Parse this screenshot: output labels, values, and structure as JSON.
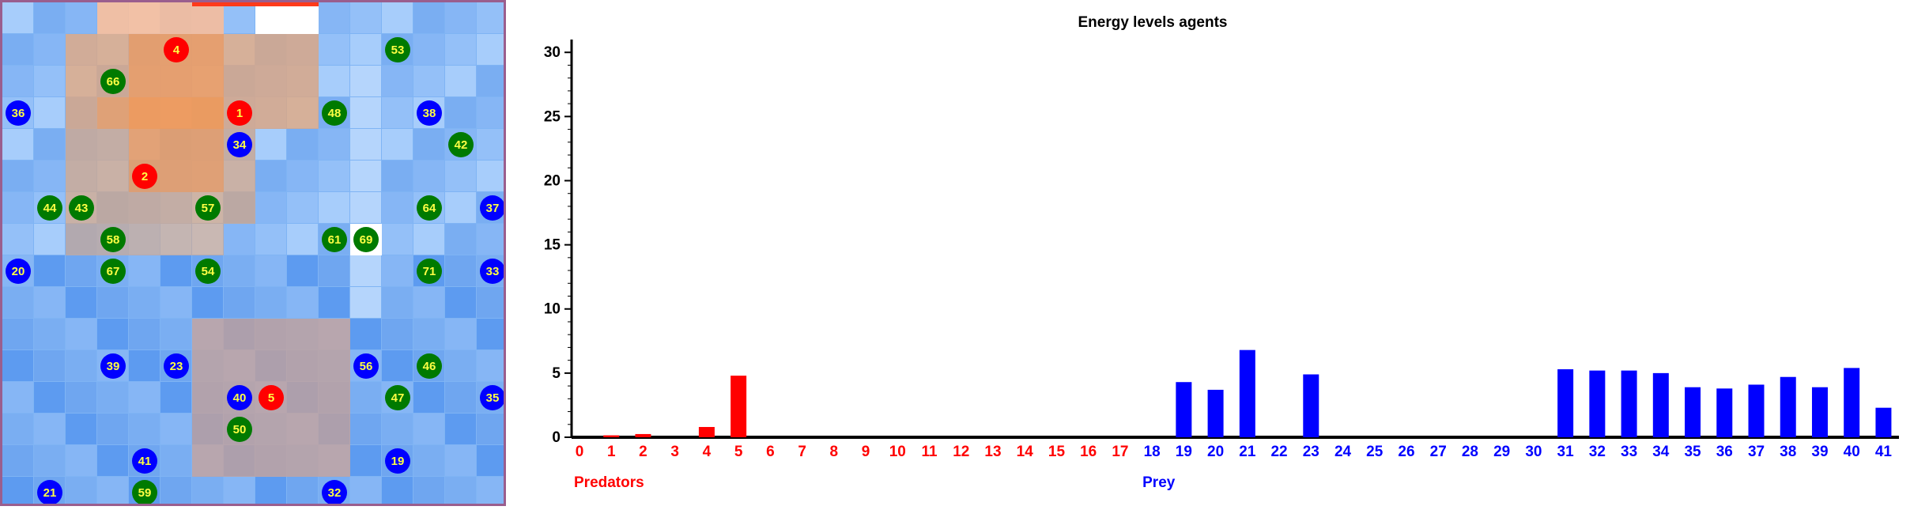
{
  "chart_data": {
    "type": "bar",
    "title": "Energy levels agents",
    "ylim": [
      0,
      31
    ],
    "yticks": [
      "0",
      "5",
      "10",
      "15",
      "20",
      "25",
      "30"
    ],
    "groups": [
      {
        "name": "Predators",
        "color": "#ff0000",
        "ids": [
          0,
          1,
          2,
          3,
          4,
          5,
          6,
          7,
          8,
          9,
          10,
          11,
          12,
          13,
          14,
          15,
          16,
          17
        ]
      },
      {
        "name": "Prey",
        "color": "#0000ff",
        "ids": [
          18,
          19,
          20,
          21,
          22,
          23,
          24,
          25,
          26,
          27,
          28,
          29,
          30,
          31,
          32,
          33,
          34,
          35,
          36,
          37,
          38,
          39,
          40,
          41
        ]
      }
    ],
    "categories": [
      "0",
      "1",
      "2",
      "3",
      "4",
      "5",
      "6",
      "7",
      "8",
      "9",
      "10",
      "11",
      "12",
      "13",
      "14",
      "15",
      "16",
      "17",
      "18",
      "19",
      "20",
      "21",
      "22",
      "23",
      "24",
      "25",
      "26",
      "27",
      "28",
      "29",
      "30",
      "31",
      "32",
      "33",
      "34",
      "35",
      "36",
      "37",
      "38",
      "39",
      "40",
      "41"
    ],
    "values": [
      0,
      0.15,
      0.25,
      0,
      0.8,
      4.8,
      0,
      0,
      0,
      0,
      0,
      0,
      0,
      0,
      0,
      0,
      0,
      0,
      0,
      4.3,
      3.7,
      6.8,
      0,
      4.9,
      0,
      0,
      0,
      0,
      0,
      0,
      0,
      5.3,
      5.2,
      5.2,
      5.0,
      3.9,
      3.8,
      4.1,
      4.7,
      3.9,
      5.4,
      2.3
    ]
  },
  "grid": {
    "agents": [
      {
        "label": "4",
        "kind": "predator",
        "col": 5,
        "row": 1
      },
      {
        "label": "1",
        "kind": "predator",
        "col": 7,
        "row": 3
      },
      {
        "label": "2",
        "kind": "predator",
        "col": 4,
        "row": 5
      },
      {
        "label": "5",
        "kind": "predator",
        "col": 8,
        "row": 12
      },
      {
        "label": "36",
        "kind": "prey",
        "col": 0,
        "row": 3
      },
      {
        "label": "34",
        "kind": "prey",
        "col": 7,
        "row": 4
      },
      {
        "label": "38",
        "kind": "prey",
        "col": 13,
        "row": 3
      },
      {
        "label": "37",
        "kind": "prey",
        "col": 15,
        "row": 6
      },
      {
        "label": "20",
        "kind": "prey",
        "col": 0,
        "row": 8
      },
      {
        "label": "33",
        "kind": "prey",
        "col": 15,
        "row": 8
      },
      {
        "label": "39",
        "kind": "prey",
        "col": 3,
        "row": 11
      },
      {
        "label": "23",
        "kind": "prey",
        "col": 5,
        "row": 11
      },
      {
        "label": "56",
        "kind": "prey",
        "col": 11,
        "row": 11
      },
      {
        "label": "40",
        "kind": "prey",
        "col": 7,
        "row": 12
      },
      {
        "label": "35",
        "kind": "prey",
        "col": 15,
        "row": 12
      },
      {
        "label": "41",
        "kind": "prey",
        "col": 4,
        "row": 14
      },
      {
        "label": "19",
        "kind": "prey",
        "col": 12,
        "row": 14
      },
      {
        "label": "21",
        "kind": "prey",
        "col": 1,
        "row": 15
      },
      {
        "label": "32",
        "kind": "prey",
        "col": 10,
        "row": 15
      },
      {
        "label": "53",
        "kind": "plant",
        "col": 12,
        "row": 1
      },
      {
        "label": "66",
        "kind": "plant",
        "col": 3,
        "row": 2
      },
      {
        "label": "48",
        "kind": "plant",
        "col": 10,
        "row": 3
      },
      {
        "label": "42",
        "kind": "plant",
        "col": 14,
        "row": 4
      },
      {
        "label": "44",
        "kind": "plant",
        "col": 1,
        "row": 6
      },
      {
        "label": "43",
        "kind": "plant",
        "col": 2,
        "row": 6
      },
      {
        "label": "57",
        "kind": "plant",
        "col": 6,
        "row": 6
      },
      {
        "label": "64",
        "kind": "plant",
        "col": 13,
        "row": 6
      },
      {
        "label": "58",
        "kind": "plant",
        "col": 3,
        "row": 7
      },
      {
        "label": "61",
        "kind": "plant",
        "col": 10,
        "row": 7
      },
      {
        "label": "69",
        "kind": "plant",
        "col": 11,
        "row": 7
      },
      {
        "label": "67",
        "kind": "plant",
        "col": 3,
        "row": 8
      },
      {
        "label": "54",
        "kind": "plant",
        "col": 6,
        "row": 8
      },
      {
        "label": "71",
        "kind": "plant",
        "col": 13,
        "row": 8
      },
      {
        "label": "46",
        "kind": "plant",
        "col": 13,
        "row": 11
      },
      {
        "label": "47",
        "kind": "plant",
        "col": 12,
        "row": 12
      },
      {
        "label": "50",
        "kind": "plant",
        "col": 7,
        "row": 13
      },
      {
        "label": "59",
        "kind": "plant",
        "col": 4,
        "row": 15
      }
    ]
  }
}
